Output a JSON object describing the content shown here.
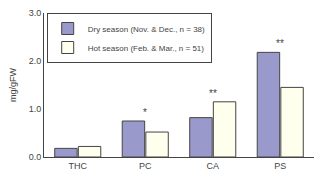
{
  "chart_data": {
    "type": "bar",
    "categories": [
      "THC",
      "PC",
      "CA",
      "PS"
    ],
    "series": [
      {
        "name": "Dry season (Nov. & Dec., n = 38)",
        "color": "#9999cc",
        "values": [
          0.18,
          0.75,
          0.82,
          2.18
        ]
      },
      {
        "name": "Hot season (Feb. & Mar., n = 51)",
        "color": "#ffffee",
        "values": [
          0.22,
          0.52,
          1.15,
          1.45
        ]
      }
    ],
    "ylabel": "mg/gFW",
    "ylim": [
      0,
      3.0
    ],
    "yticks": [
      {
        "value": 0.0,
        "label": "0.0"
      },
      {
        "value": 1.0,
        "label": "1.0"
      },
      {
        "value": 2.0,
        "label": "2.0"
      },
      {
        "value": 3.0,
        "label": "3.0"
      }
    ],
    "annotations": [
      {
        "category": "PC",
        "text": "*"
      },
      {
        "category": "CA",
        "text": "**"
      },
      {
        "category": "PS",
        "text": "**"
      }
    ],
    "legend": "upper left",
    "grid": false
  }
}
